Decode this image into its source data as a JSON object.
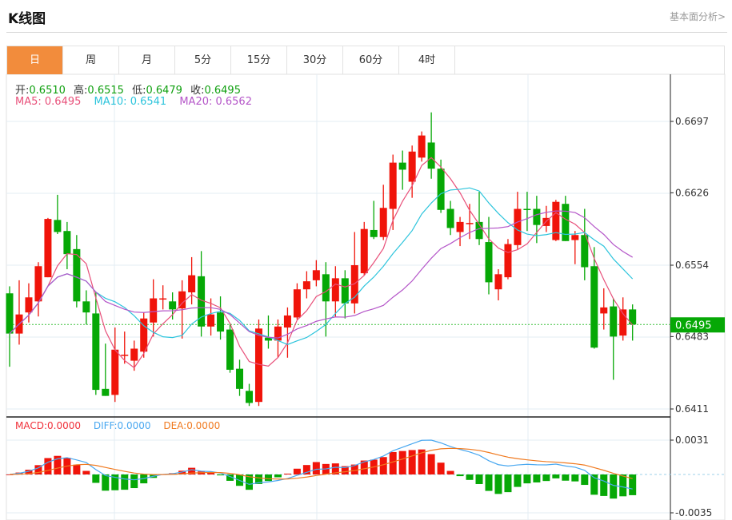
{
  "header": {
    "title": "K线图",
    "link": "基本面分析>"
  },
  "tabs": [
    {
      "label": "日",
      "active": true
    },
    {
      "label": "周"
    },
    {
      "label": "月"
    },
    {
      "label": "5分"
    },
    {
      "label": "15分"
    },
    {
      "label": "30分"
    },
    {
      "label": "60分"
    },
    {
      "label": "4时"
    }
  ],
  "ohlc_info": {
    "open_label": "开:",
    "open": "0.6510",
    "high_label": "高:",
    "high": "0.6515",
    "low_label": "低:",
    "low": "0.6479",
    "close_label": "收:",
    "close": "0.6495"
  },
  "ma_info": {
    "ma5": "MA5: 0.6495",
    "ma10": "MA10: 0.6541",
    "ma20": "MA20: 0.6562"
  },
  "macd_info": {
    "macd": "MACD:0.0000",
    "diff": "DIFF:0.0000",
    "dea": "DEA:0.0000"
  },
  "colors": {
    "up": "#f0140a",
    "down": "#06a806",
    "ma5": "#e8507a",
    "ma10": "#2cc4dc",
    "ma20": "#b455c8",
    "diff": "#4aa8f0",
    "dea": "#f07a20",
    "active_tab": "#f28c3c"
  },
  "chart_data": {
    "type": "candlestick",
    "price_axis": {
      "ticks": [
        "0.6697",
        "0.6626",
        "0.6554",
        "0.6483",
        "0.6411"
      ],
      "ylim": [
        0.6411,
        0.6697
      ],
      "position": "right"
    },
    "current_price": "0.6495",
    "macd_axis": {
      "ticks": [
        "0.0031",
        "-0.0035"
      ],
      "ylim": [
        -0.0035,
        0.0031
      ]
    },
    "grid": true,
    "candles_ohlc": [
      [
        0.6526,
        0.6533,
        0.6453,
        0.6486
      ],
      [
        0.6486,
        0.6539,
        0.6475,
        0.6505
      ],
      [
        0.6507,
        0.6536,
        0.6497,
        0.6522
      ],
      [
        0.6518,
        0.6557,
        0.6503,
        0.6553
      ],
      [
        0.6542,
        0.6601,
        0.6542,
        0.66
      ],
      [
        0.6599,
        0.6624,
        0.6585,
        0.6587
      ],
      [
        0.6588,
        0.6597,
        0.655,
        0.6565
      ],
      [
        0.657,
        0.6584,
        0.6512,
        0.6518
      ],
      [
        0.6518,
        0.6529,
        0.6495,
        0.6507
      ],
      [
        0.6506,
        0.6527,
        0.6425,
        0.643
      ],
      [
        0.6431,
        0.6476,
        0.6424,
        0.6424
      ],
      [
        0.6425,
        0.6492,
        0.6418,
        0.647
      ],
      [
        0.6464,
        0.6488,
        0.6456,
        0.6465
      ],
      [
        0.6459,
        0.6479,
        0.6449,
        0.6471
      ],
      [
        0.6468,
        0.6507,
        0.6462,
        0.6501
      ],
      [
        0.6497,
        0.654,
        0.6483,
        0.6521
      ],
      [
        0.652,
        0.6534,
        0.651,
        0.6521
      ],
      [
        0.6518,
        0.6527,
        0.65,
        0.651
      ],
      [
        0.6511,
        0.6539,
        0.6481,
        0.6528
      ],
      [
        0.6527,
        0.6562,
        0.6515,
        0.6544
      ],
      [
        0.6543,
        0.6568,
        0.6483,
        0.6493
      ],
      [
        0.6493,
        0.6521,
        0.6484,
        0.6505
      ],
      [
        0.6507,
        0.6523,
        0.648,
        0.6488
      ],
      [
        0.649,
        0.6496,
        0.6447,
        0.645
      ],
      [
        0.6451,
        0.646,
        0.6424,
        0.6431
      ],
      [
        0.6429,
        0.6436,
        0.6414,
        0.6417
      ],
      [
        0.6418,
        0.65,
        0.6414,
        0.6491
      ],
      [
        0.6482,
        0.6504,
        0.6471,
        0.6479
      ],
      [
        0.6479,
        0.65,
        0.6462,
        0.6493
      ],
      [
        0.6492,
        0.6512,
        0.6462,
        0.6504
      ],
      [
        0.6502,
        0.6536,
        0.65,
        0.653
      ],
      [
        0.653,
        0.6548,
        0.6521,
        0.6538
      ],
      [
        0.6539,
        0.6559,
        0.6533,
        0.6549
      ],
      [
        0.6545,
        0.6557,
        0.6483,
        0.6518
      ],
      [
        0.6518,
        0.6553,
        0.6502,
        0.6541
      ],
      [
        0.6541,
        0.6549,
        0.6501,
        0.6516
      ],
      [
        0.6516,
        0.6587,
        0.6506,
        0.6554
      ],
      [
        0.6546,
        0.6597,
        0.6544,
        0.659
      ],
      [
        0.6589,
        0.6618,
        0.658,
        0.6582
      ],
      [
        0.6582,
        0.6634,
        0.6579,
        0.6611
      ],
      [
        0.661,
        0.6664,
        0.6589,
        0.6656
      ],
      [
        0.6656,
        0.6668,
        0.6629,
        0.6649
      ],
      [
        0.6637,
        0.6673,
        0.6621,
        0.6667
      ],
      [
        0.6661,
        0.6687,
        0.6657,
        0.6683
      ],
      [
        0.6676,
        0.6706,
        0.664,
        0.665
      ],
      [
        0.665,
        0.6659,
        0.6606,
        0.6609
      ],
      [
        0.661,
        0.6618,
        0.6584,
        0.6591
      ],
      [
        0.6587,
        0.6602,
        0.6573,
        0.6597
      ],
      [
        0.6595,
        0.6615,
        0.658,
        0.6596
      ],
      [
        0.6597,
        0.6627,
        0.6574,
        0.658
      ],
      [
        0.6577,
        0.6602,
        0.6525,
        0.6537
      ],
      [
        0.653,
        0.655,
        0.6519,
        0.6545
      ],
      [
        0.6542,
        0.658,
        0.654,
        0.6575
      ],
      [
        0.6574,
        0.6627,
        0.657,
        0.661
      ],
      [
        0.661,
        0.6627,
        0.6588,
        0.6609
      ],
      [
        0.661,
        0.6623,
        0.6576,
        0.6594
      ],
      [
        0.6593,
        0.6613,
        0.6587,
        0.6601
      ],
      [
        0.6579,
        0.6619,
        0.6578,
        0.6617
      ],
      [
        0.6615,
        0.6623,
        0.6578,
        0.6578
      ],
      [
        0.6579,
        0.6588,
        0.6555,
        0.6584
      ],
      [
        0.6584,
        0.661,
        0.6539,
        0.6552
      ],
      [
        0.6553,
        0.6572,
        0.6471,
        0.6472
      ],
      [
        0.6506,
        0.6531,
        0.649,
        0.6512
      ],
      [
        0.6513,
        0.6521,
        0.644,
        0.6483
      ],
      [
        0.6484,
        0.6522,
        0.6479,
        0.651
      ],
      [
        0.651,
        0.6515,
        0.6479,
        0.6495
      ]
    ],
    "series": [
      {
        "name": "MA5"
      },
      {
        "name": "MA10"
      },
      {
        "name": "MA20"
      },
      {
        "name": "MACD"
      },
      {
        "name": "DIFF"
      },
      {
        "name": "DEA"
      }
    ]
  }
}
